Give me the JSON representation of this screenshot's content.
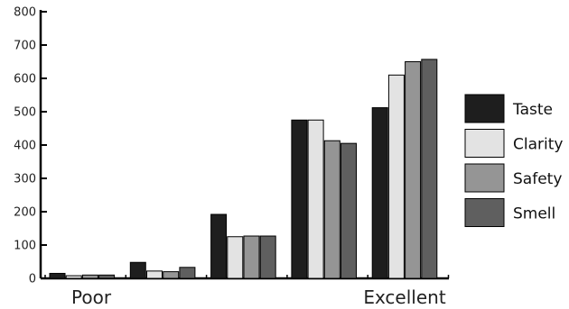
{
  "chart_data": {
    "type": "bar",
    "title": "",
    "xlabel": "",
    "ylabel": "",
    "ylim": [
      0,
      800
    ],
    "yticks": [
      0,
      100,
      200,
      300,
      400,
      500,
      600,
      700,
      800
    ],
    "ytick_labels": [
      "0",
      "100",
      "200",
      "300",
      "400",
      "500",
      "600",
      "700",
      "800"
    ],
    "categories": [
      "Poor",
      "",
      "",
      "",
      "Excellent"
    ],
    "grid": false,
    "legend_position": "right",
    "series": [
      {
        "name": "Taste",
        "color": "#1e1e1e",
        "values": [
          15,
          48,
          192,
          475,
          512
        ]
      },
      {
        "name": "Clarity",
        "color": "#e3e3e3",
        "values": [
          8,
          22,
          125,
          475,
          610
        ]
      },
      {
        "name": "Safety",
        "color": "#959595",
        "values": [
          10,
          20,
          127,
          413,
          650
        ]
      },
      {
        "name": "Smell",
        "color": "#5f5f5f",
        "values": [
          10,
          33,
          127,
          405,
          657
        ]
      }
    ]
  }
}
